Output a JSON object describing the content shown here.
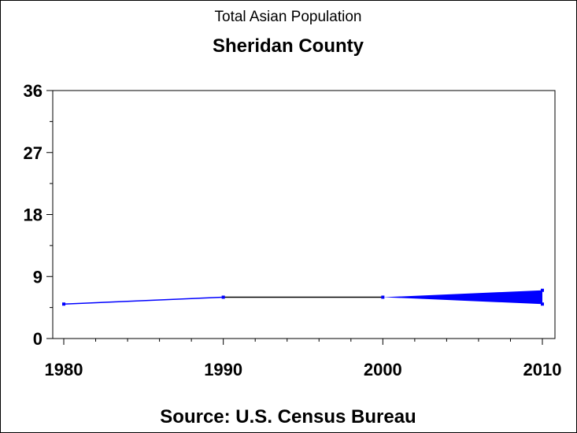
{
  "chart_data": {
    "type": "line",
    "title": "Total Asian Population",
    "subtitle": "Sheridan County",
    "xlabel": "",
    "ylabel": "",
    "footnote": "Source: U.S. Census Bureau",
    "x": [
      1980,
      1990,
      2000,
      2010
    ],
    "series": [
      {
        "name": "Total Asian Population",
        "values": [
          5,
          6,
          6,
          6
        ],
        "color": "#0000ff"
      }
    ],
    "range_2010": {
      "low": 5,
      "high": 7
    },
    "xlim": [
      1980,
      2010
    ],
    "ylim": [
      0,
      36
    ],
    "xticks": [
      "1980",
      "1990",
      "2000",
      "2010"
    ],
    "yticks": [
      "0",
      "9",
      "18",
      "27",
      "36"
    ],
    "grid": false
  }
}
